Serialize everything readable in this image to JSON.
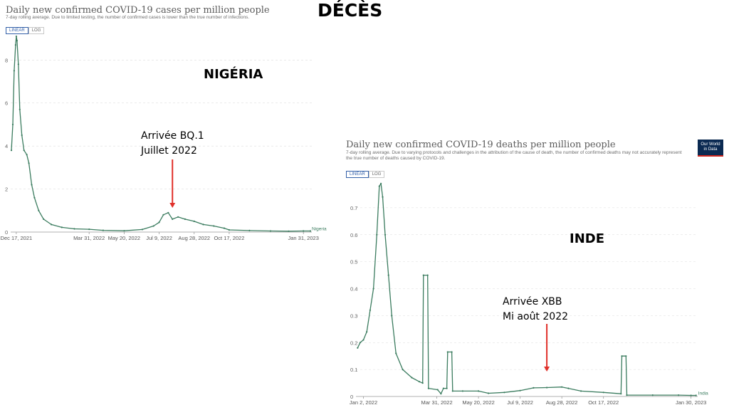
{
  "page_heading": "DÉCÈS",
  "logo": {
    "line1": "Our World",
    "line2": "in Data"
  },
  "toggle": {
    "linear": "LINEAR",
    "log": "LOG"
  },
  "colors": {
    "line": "#3b7c5f",
    "arrow": "#e0302a",
    "grid": "#dddddd",
    "logo_bg": "#0b2a52",
    "logo_accent": "#ce261e",
    "toggle_active": "#3360a9"
  },
  "chart_data": [
    {
      "id": "nigeria",
      "type": "line",
      "title": "Daily new confirmed COVID-19 cases per million people",
      "subtitle": "7-day rolling average. Due to limited testing, the number of confirmed cases is lower than the true number of infections.",
      "overlay_label": "NIGÉRIA",
      "annotation": {
        "line1": "Arrivée BQ.1",
        "line2": "Juillet 2022",
        "date": "2022-07-28"
      },
      "series": [
        {
          "name": "Nigeria",
          "points": [
            [
              "2021-12-10",
              3.8
            ],
            [
              "2021-12-12",
              5.0
            ],
            [
              "2021-12-14",
              7.5
            ],
            [
              "2021-12-16",
              8.7
            ],
            [
              "2021-12-17",
              9.1
            ],
            [
              "2021-12-18",
              8.9
            ],
            [
              "2021-12-20",
              7.8
            ],
            [
              "2021-12-22",
              5.7
            ],
            [
              "2021-12-25",
              4.5
            ],
            [
              "2021-12-28",
              3.8
            ],
            [
              "2022-01-01",
              3.6
            ],
            [
              "2022-01-04",
              3.2
            ],
            [
              "2022-01-08",
              2.2
            ],
            [
              "2022-01-12",
              1.6
            ],
            [
              "2022-01-18",
              1.0
            ],
            [
              "2022-01-25",
              0.6
            ],
            [
              "2022-02-05",
              0.35
            ],
            [
              "2022-02-20",
              0.22
            ],
            [
              "2022-03-10",
              0.15
            ],
            [
              "2022-03-31",
              0.13
            ],
            [
              "2022-04-20",
              0.08
            ],
            [
              "2022-05-20",
              0.06
            ],
            [
              "2022-06-15",
              0.12
            ],
            [
              "2022-07-01",
              0.28
            ],
            [
              "2022-07-09",
              0.45
            ],
            [
              "2022-07-15",
              0.8
            ],
            [
              "2022-07-22",
              0.9
            ],
            [
              "2022-07-28",
              0.6
            ],
            [
              "2022-08-05",
              0.7
            ],
            [
              "2022-08-15",
              0.6
            ],
            [
              "2022-08-28",
              0.5
            ],
            [
              "2022-09-10",
              0.35
            ],
            [
              "2022-09-25",
              0.28
            ],
            [
              "2022-10-10",
              0.18
            ],
            [
              "2022-10-17",
              0.1
            ],
            [
              "2022-11-15",
              0.07
            ],
            [
              "2022-12-15",
              0.05
            ],
            [
              "2023-01-10",
              0.04
            ],
            [
              "2023-01-31",
              0.05
            ],
            [
              "2023-02-10",
              0.05
            ]
          ]
        }
      ],
      "x_ticks": [
        "Dec 17, 2021",
        "Mar 31, 2022",
        "May 20, 2022",
        "Jul 9, 2022",
        "Aug 28, 2022",
        "Oct 17, 2022",
        "Jan 31, 2023"
      ],
      "x_tick_dates": [
        "2021-12-17",
        "2022-03-31",
        "2022-05-20",
        "2022-07-09",
        "2022-08-28",
        "2022-10-17",
        "2023-01-31"
      ],
      "y_ticks": [
        "0",
        "2",
        "4",
        "6",
        "8"
      ],
      "ylim": [
        0,
        9.3
      ],
      "xlim": [
        "2021-12-09",
        "2023-02-12"
      ],
      "grid": true,
      "legend": "end-of-line"
    },
    {
      "id": "india",
      "type": "line",
      "title": "Daily new confirmed COVID-19 deaths per million people",
      "subtitle": "7-day rolling average. Due to varying protocols and challenges in the attribution of the cause of death, the number of confirmed deaths may not accurately represent the true number of deaths caused by COVID-19.",
      "overlay_label": "INDE",
      "annotation": {
        "line1": "Arrivée XBB",
        "line2": "Mi août 2022",
        "date": "2022-08-10"
      },
      "series": [
        {
          "name": "India",
          "points": [
            [
              "2021-12-26",
              0.18
            ],
            [
              "2021-12-29",
              0.2
            ],
            [
              "2022-01-02",
              0.21
            ],
            [
              "2022-01-06",
              0.24
            ],
            [
              "2022-01-10",
              0.32
            ],
            [
              "2022-01-14",
              0.4
            ],
            [
              "2022-01-18",
              0.6
            ],
            [
              "2022-01-21",
              0.78
            ],
            [
              "2022-01-23",
              0.79
            ],
            [
              "2022-01-25",
              0.74
            ],
            [
              "2022-01-28",
              0.6
            ],
            [
              "2022-02-01",
              0.45
            ],
            [
              "2022-02-05",
              0.3
            ],
            [
              "2022-02-10",
              0.16
            ],
            [
              "2022-02-18",
              0.1
            ],
            [
              "2022-03-01",
              0.07
            ],
            [
              "2022-03-10",
              0.055
            ],
            [
              "2022-03-14",
              0.05
            ],
            [
              "2022-03-15",
              0.45
            ],
            [
              "2022-03-20",
              0.45
            ],
            [
              "2022-03-21",
              0.03
            ],
            [
              "2022-04-01",
              0.025
            ],
            [
              "2022-04-05",
              0.01
            ],
            [
              "2022-04-08",
              0.03
            ],
            [
              "2022-04-12",
              0.03
            ],
            [
              "2022-04-13",
              0.165
            ],
            [
              "2022-04-18",
              0.165
            ],
            [
              "2022-04-19",
              0.02
            ],
            [
              "2022-05-01",
              0.02
            ],
            [
              "2022-05-20",
              0.02
            ],
            [
              "2022-06-01",
              0.012
            ],
            [
              "2022-06-20",
              0.015
            ],
            [
              "2022-07-09",
              0.022
            ],
            [
              "2022-07-25",
              0.032
            ],
            [
              "2022-08-10",
              0.033
            ],
            [
              "2022-08-28",
              0.035
            ],
            [
              "2022-09-05",
              0.03
            ],
            [
              "2022-09-20",
              0.02
            ],
            [
              "2022-10-17",
              0.015
            ],
            [
              "2022-11-07",
              0.01
            ],
            [
              "2022-11-08",
              0.15
            ],
            [
              "2022-11-13",
              0.15
            ],
            [
              "2022-11-14",
              0.005
            ],
            [
              "2022-12-15",
              0.005
            ],
            [
              "2023-01-15",
              0.005
            ],
            [
              "2023-01-30",
              0.004
            ],
            [
              "2023-02-05",
              0.004
            ]
          ]
        }
      ],
      "x_ticks": [
        "Jan 2, 2022",
        "Mar 31, 2022",
        "May 20, 2022",
        "Jul 9, 2022",
        "Aug 28, 2022",
        "Oct 17, 2022",
        "Jan 30, 2023"
      ],
      "x_tick_dates": [
        "2022-01-02",
        "2022-03-31",
        "2022-05-20",
        "2022-07-09",
        "2022-08-28",
        "2022-10-17",
        "2023-01-30"
      ],
      "y_ticks": [
        "0",
        "0.1",
        "0.2",
        "0.3",
        "0.4",
        "0.5",
        "0.6",
        "0.7"
      ],
      "ylim": [
        0,
        0.8
      ],
      "xlim": [
        "2021-12-24",
        "2023-02-07"
      ],
      "grid": true,
      "legend": "end-of-line"
    }
  ]
}
